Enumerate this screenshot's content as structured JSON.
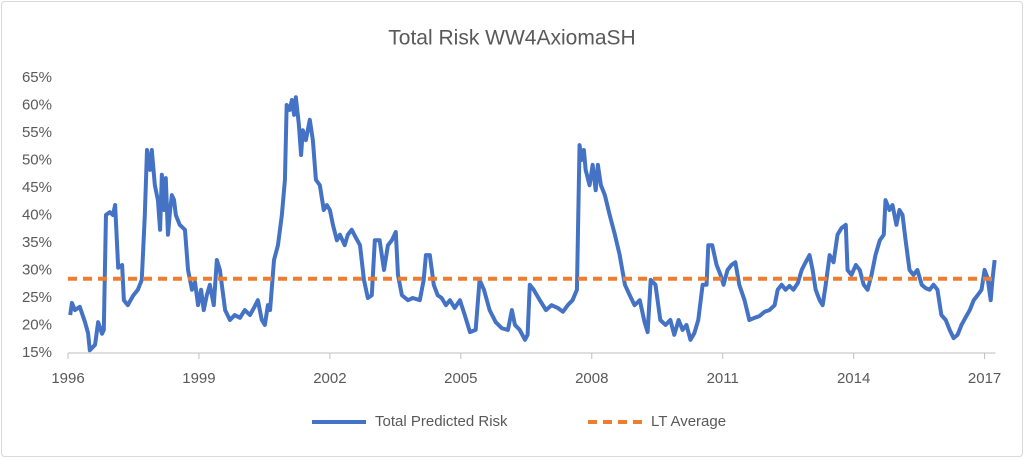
{
  "chart_data": {
    "type": "line",
    "title": "Total Risk WW4AxiomaSH",
    "xlim": [
      1996,
      2017.25
    ],
    "xticks": [
      1996,
      1999,
      2002,
      2005,
      2008,
      2011,
      2014,
      2017
    ],
    "ylim": [
      15,
      65
    ],
    "yticks": [
      {
        "value": 15,
        "label": "15%"
      },
      {
        "value": 20,
        "label": "20%"
      },
      {
        "value": 25,
        "label": "25%"
      },
      {
        "value": 30,
        "label": "30%"
      },
      {
        "value": 35,
        "label": "35%"
      },
      {
        "value": 40,
        "label": "40%"
      },
      {
        "value": 45,
        "label": "45%"
      },
      {
        "value": 50,
        "label": "50%"
      },
      {
        "value": 55,
        "label": "55%"
      },
      {
        "value": 60,
        "label": "60%"
      },
      {
        "value": 65,
        "label": "65%"
      }
    ],
    "grid": false,
    "legend": "bottom",
    "x": [
      1996.05,
      1996.09,
      1996.16,
      1996.27,
      1996.39,
      1996.46,
      1996.5,
      1996.62,
      1996.69,
      1996.78,
      1996.82,
      1996.87,
      1996.96,
      1997.03,
      1997.08,
      1997.15,
      1997.24,
      1997.28,
      1997.37,
      1997.49,
      1997.6,
      1997.69,
      1997.76,
      1997.81,
      1997.88,
      1997.92,
      1997.99,
      1998.06,
      1998.11,
      1998.15,
      1998.2,
      1998.24,
      1998.29,
      1998.34,
      1998.38,
      1998.43,
      1998.47,
      1998.56,
      1998.68,
      1998.75,
      1998.84,
      1998.91,
      1998.98,
      1999.05,
      1999.11,
      1999.18,
      1999.25,
      1999.34,
      1999.41,
      1999.48,
      1999.6,
      1999.71,
      1999.82,
      1999.94,
      2000.05,
      2000.17,
      2000.28,
      2000.35,
      2000.44,
      2000.51,
      2000.58,
      2000.63,
      2000.72,
      2000.81,
      2000.9,
      2000.97,
      2001.01,
      2001.08,
      2001.13,
      2001.18,
      2001.22,
      2001.29,
      2001.34,
      2001.38,
      2001.45,
      2001.54,
      2001.61,
      2001.68,
      2001.77,
      2001.86,
      2001.93,
      2002.0,
      2002.07,
      2002.16,
      2002.23,
      2002.34,
      2002.41,
      2002.5,
      2002.6,
      2002.69,
      2002.78,
      2002.87,
      2002.96,
      2003.03,
      2003.14,
      2003.24,
      2003.33,
      2003.42,
      2003.51,
      2003.56,
      2003.65,
      2003.79,
      2003.9,
      2004.06,
      2004.15,
      2004.2,
      2004.29,
      2004.38,
      2004.47,
      2004.56,
      2004.66,
      2004.75,
      2004.86,
      2004.98,
      2005.09,
      2005.21,
      2005.34,
      2005.43,
      2005.53,
      2005.66,
      2005.8,
      2005.94,
      2006.08,
      2006.17,
      2006.24,
      2006.35,
      2006.47,
      2006.53,
      2006.58,
      2006.67,
      2006.81,
      2006.95,
      2007.08,
      2007.22,
      2007.34,
      2007.45,
      2007.56,
      2007.66,
      2007.72,
      2007.77,
      2007.82,
      2007.86,
      2007.95,
      2008.02,
      2008.09,
      2008.14,
      2008.21,
      2008.3,
      2008.41,
      2008.53,
      2008.64,
      2008.76,
      2008.87,
      2008.98,
      2009.1,
      2009.21,
      2009.28,
      2009.35,
      2009.46,
      2009.57,
      2009.69,
      2009.8,
      2009.89,
      2009.99,
      2010.08,
      2010.17,
      2010.26,
      2010.35,
      2010.44,
      2010.54,
      2010.63,
      2010.67,
      2010.76,
      2010.86,
      2010.95,
      2011.02,
      2011.11,
      2011.2,
      2011.29,
      2011.38,
      2011.5,
      2011.61,
      2011.73,
      2011.84,
      2011.96,
      2012.07,
      2012.19,
      2012.26,
      2012.35,
      2012.44,
      2012.53,
      2012.62,
      2012.72,
      2012.81,
      2012.9,
      2012.99,
      2013.06,
      2013.13,
      2013.22,
      2013.29,
      2013.36,
      2013.45,
      2013.54,
      2013.63,
      2013.72,
      2013.82,
      2013.86,
      2013.95,
      2014.05,
      2014.14,
      2014.23,
      2014.32,
      2014.41,
      2014.5,
      2014.6,
      2014.69,
      2014.73,
      2014.82,
      2014.89,
      2014.98,
      2015.05,
      2015.12,
      2015.19,
      2015.28,
      2015.37,
      2015.46,
      2015.56,
      2015.65,
      2015.74,
      2015.83,
      2015.92,
      2016.01,
      2016.11,
      2016.2,
      2016.29,
      2016.38,
      2016.47,
      2016.56,
      2016.66,
      2016.75,
      2016.84,
      2016.93,
      2017.0,
      2017.07,
      2017.14,
      2017.18,
      2017.23
    ],
    "series": [
      {
        "name": "Total Predicted Risk",
        "color": "#4472c4",
        "values": [
          21.9,
          24.1,
          22.8,
          23.4,
          20.6,
          18.6,
          15.5,
          16.5,
          20.6,
          18.5,
          19.2,
          40.1,
          40.6,
          40.1,
          41.9,
          30.5,
          31.0,
          24.6,
          23.7,
          25.4,
          26.5,
          28.3,
          40.1,
          51.9,
          48.3,
          51.9,
          45.5,
          42.8,
          37.4,
          47.4,
          41.0,
          46.8,
          36.5,
          41.0,
          43.7,
          42.8,
          40.1,
          38.3,
          37.4,
          30.1,
          26.5,
          27.9,
          23.7,
          26.5,
          22.8,
          25.5,
          27.4,
          23.7,
          31.9,
          30.1,
          22.8,
          21.0,
          21.9,
          21.4,
          22.8,
          21.9,
          23.5,
          24.6,
          21.0,
          20.1,
          23.7,
          22.8,
          31.9,
          34.6,
          40.1,
          46.5,
          60.1,
          59.2,
          61.0,
          58.3,
          61.5,
          56.5,
          51.0,
          55.5,
          53.7,
          57.4,
          53.7,
          46.5,
          45.5,
          41.0,
          41.9,
          41.0,
          38.3,
          35.5,
          36.5,
          34.6,
          36.5,
          37.4,
          35.9,
          34.6,
          28.3,
          25.0,
          25.5,
          35.5,
          35.5,
          30.1,
          34.6,
          35.5,
          37.0,
          29.2,
          25.5,
          24.6,
          25.0,
          24.6,
          28.3,
          32.8,
          32.8,
          27.4,
          25.5,
          25.0,
          23.7,
          24.6,
          23.2,
          24.6,
          21.9,
          18.8,
          19.2,
          28.3,
          26.5,
          22.8,
          20.6,
          19.5,
          19.2,
          22.8,
          20.1,
          19.2,
          17.4,
          18.3,
          27.4,
          26.5,
          24.6,
          22.8,
          23.7,
          23.2,
          22.5,
          23.7,
          24.6,
          26.5,
          52.8,
          50.1,
          51.9,
          48.3,
          45.5,
          49.2,
          44.6,
          49.2,
          45.5,
          43.7,
          40.1,
          36.5,
          32.8,
          27.4,
          25.5,
          23.7,
          24.6,
          20.6,
          18.8,
          28.3,
          27.4,
          21.0,
          20.1,
          21.0,
          18.3,
          21.0,
          19.2,
          20.1,
          17.4,
          18.6,
          21.0,
          27.4,
          27.4,
          34.6,
          34.6,
          31.0,
          29.2,
          27.4,
          30.1,
          31.0,
          31.5,
          27.4,
          24.6,
          21.0,
          21.4,
          21.7,
          22.5,
          22.8,
          23.7,
          26.5,
          27.4,
          26.5,
          27.2,
          26.5,
          27.7,
          30.1,
          31.5,
          32.8,
          30.1,
          26.5,
          24.6,
          23.7,
          27.4,
          32.8,
          31.5,
          36.5,
          37.7,
          38.3,
          30.1,
          29.2,
          31.0,
          30.1,
          27.4,
          26.5,
          29.2,
          32.8,
          35.5,
          36.5,
          42.8,
          41.0,
          41.9,
          38.3,
          41.0,
          40.1,
          35.5,
          30.1,
          29.2,
          30.1,
          27.4,
          26.8,
          26.5,
          27.4,
          26.5,
          21.9,
          21.0,
          19.2,
          17.7,
          18.3,
          20.1,
          21.4,
          22.8,
          24.6,
          25.5,
          26.5,
          30.1,
          28.6,
          24.6,
          28.3,
          31.9
        ]
      },
      {
        "name": "LT Average",
        "color": "#ed7d31",
        "dashed": true,
        "value": 28.5
      }
    ]
  }
}
